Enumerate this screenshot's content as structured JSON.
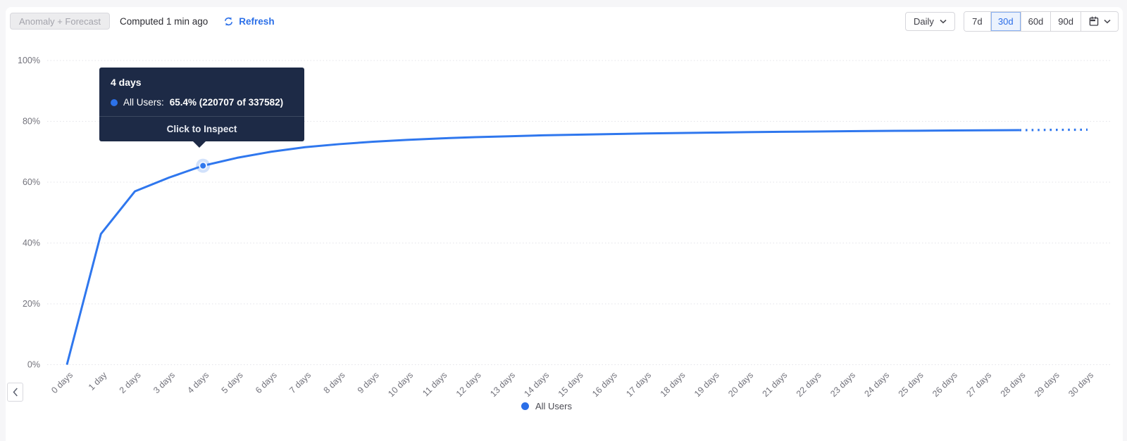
{
  "header": {
    "anomaly_forecast_label": "Anomaly + Forecast",
    "computed_label": "Computed 1 min ago",
    "refresh_label": "Refresh",
    "interval_dropdown": {
      "selected": "Daily"
    },
    "range_buttons": [
      {
        "label": "7d",
        "selected": false
      },
      {
        "label": "30d",
        "selected": true
      },
      {
        "label": "60d",
        "selected": false
      },
      {
        "label": "90d",
        "selected": false
      }
    ]
  },
  "tooltip": {
    "title": "4 days",
    "series_label": "All Users:",
    "value_text": "65.4% (220707 of 337582)",
    "footer": "Click to Inspect",
    "bg_color": "#1d2a46",
    "dot_color": "#2c72ea"
  },
  "legend": {
    "items": [
      {
        "label": "All Users",
        "color": "#2b6fe8"
      }
    ]
  },
  "chart_data": {
    "type": "line",
    "title": "",
    "xlabel": "",
    "ylabel": "",
    "ylim": [
      0,
      100
    ],
    "y_ticks": [
      {
        "value": 0,
        "label": "0%"
      },
      {
        "value": 20,
        "label": "20%"
      },
      {
        "value": 40,
        "label": "40%"
      },
      {
        "value": 60,
        "label": "60%"
      },
      {
        "value": 80,
        "label": "80%"
      },
      {
        "value": 100,
        "label": "100%"
      }
    ],
    "x": [
      0,
      1,
      2,
      3,
      4,
      5,
      6,
      7,
      8,
      9,
      10,
      11,
      12,
      13,
      14,
      15,
      16,
      17,
      18,
      19,
      20,
      21,
      22,
      23,
      24,
      25,
      26,
      27,
      28,
      29,
      30
    ],
    "x_tick_labels": [
      "0 days",
      "1 day",
      "2 days",
      "3 days",
      "4 days",
      "5 days",
      "6 days",
      "7 days",
      "8 days",
      "9 days",
      "10 days",
      "11 days",
      "12 days",
      "13 days",
      "14 days",
      "15 days",
      "16 days",
      "17 days",
      "18 days",
      "19 days",
      "20 days",
      "21 days",
      "22 days",
      "23 days",
      "24 days",
      "25 days",
      "26 days",
      "27 days",
      "28 days",
      "29 days",
      "30 days"
    ],
    "grid": "dotted-horizontal",
    "legend_position": "bottom-center",
    "series": [
      {
        "name": "All Users",
        "color": "#2f77ee",
        "values": [
          0,
          43,
          57,
          61.5,
          65.4,
          68,
          70,
          71.5,
          72.5,
          73.3,
          73.9,
          74.4,
          74.8,
          75.1,
          75.4,
          75.6,
          75.8,
          76.0,
          76.15,
          76.3,
          76.45,
          76.55,
          76.65,
          76.75,
          76.85,
          76.9,
          77.0,
          77.05,
          77.1,
          77.2,
          77.25
        ],
        "forecast_start_day": 28,
        "forecast_style": "dotted"
      }
    ],
    "highlight": {
      "day": 4,
      "value": 65.4,
      "series": "All Users"
    }
  }
}
